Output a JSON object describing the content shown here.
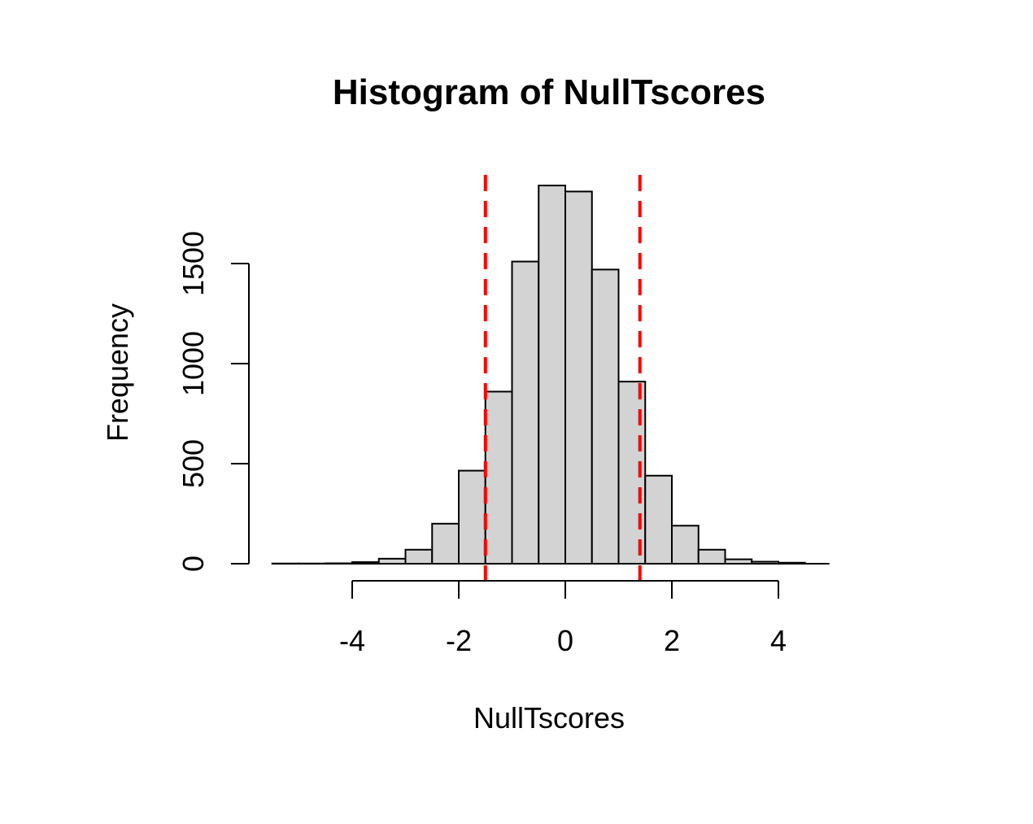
{
  "chart_data": {
    "type": "bar",
    "title": "Histogram of NullTscores",
    "xlabel": "NullTscores",
    "ylabel": "Frequency",
    "xlim": [
      -5.5,
      5.0
    ],
    "ylim": [
      0,
      1900
    ],
    "x_ticks": [
      -4,
      -2,
      0,
      2,
      4
    ],
    "x_tick_labels": [
      "-4",
      "-2",
      "0",
      "2",
      "4"
    ],
    "y_ticks": [
      0,
      500,
      1000,
      1500
    ],
    "y_tick_labels": [
      "0",
      "500",
      "1000",
      "1500"
    ],
    "bin_width": 0.5,
    "bins": [
      {
        "start": -5.5,
        "end": -5.0,
        "count": 1
      },
      {
        "start": -5.0,
        "end": -4.5,
        "count": 1
      },
      {
        "start": -4.5,
        "end": -4.0,
        "count": 2
      },
      {
        "start": -4.0,
        "end": -3.5,
        "count": 8
      },
      {
        "start": -3.5,
        "end": -3.0,
        "count": 25
      },
      {
        "start": -3.0,
        "end": -2.5,
        "count": 70
      },
      {
        "start": -2.5,
        "end": -2.0,
        "count": 200
      },
      {
        "start": -2.0,
        "end": -1.5,
        "count": 465
      },
      {
        "start": -1.5,
        "end": -1.0,
        "count": 860
      },
      {
        "start": -1.0,
        "end": -0.5,
        "count": 1510
      },
      {
        "start": -0.5,
        "end": 0.0,
        "count": 1890
      },
      {
        "start": 0.0,
        "end": 0.5,
        "count": 1860
      },
      {
        "start": 0.5,
        "end": 1.0,
        "count": 1470
      },
      {
        "start": 1.0,
        "end": 1.5,
        "count": 910
      },
      {
        "start": 1.5,
        "end": 2.0,
        "count": 440
      },
      {
        "start": 2.0,
        "end": 2.5,
        "count": 190
      },
      {
        "start": 2.5,
        "end": 3.0,
        "count": 70
      },
      {
        "start": 3.0,
        "end": 3.5,
        "count": 22
      },
      {
        "start": 3.5,
        "end": 4.0,
        "count": 10
      },
      {
        "start": 4.0,
        "end": 4.5,
        "count": 5
      }
    ],
    "reference_lines": [
      {
        "x": -1.5,
        "color": "#ff0000",
        "style": "dashed"
      },
      {
        "x": 1.4,
        "color": "#ff0000",
        "style": "dashed"
      }
    ],
    "bar_fill": "#d3d3d3",
    "bar_stroke": "#000000",
    "grid": false,
    "legend": "none"
  }
}
